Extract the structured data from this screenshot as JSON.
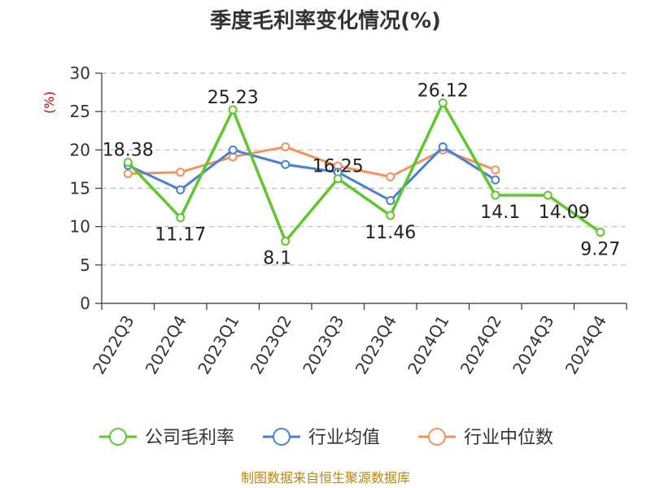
{
  "chart_data": {
    "type": "line",
    "title": "季度毛利率变化情况(%)",
    "unit_label": "(%)",
    "source": "制图数据来自恒生聚源数据库",
    "categories": [
      "2022Q3",
      "2022Q4",
      "2023Q1",
      "2023Q2",
      "2023Q3",
      "2023Q4",
      "2024Q1",
      "2024Q2",
      "2024Q3",
      "2024Q4"
    ],
    "ylim": [
      0,
      30
    ],
    "yticks": [
      0,
      5,
      10,
      15,
      20,
      25,
      30
    ],
    "grid": true,
    "legend_position": "bottom",
    "series": [
      {
        "name": "公司毛利率",
        "color": "#5ec72b",
        "values": [
          18.38,
          11.17,
          25.23,
          8.1,
          16.25,
          11.46,
          26.12,
          14.1,
          14.09,
          9.27
        ],
        "labels": [
          "18.38",
          "11.17",
          "25.23",
          "8.1",
          "16.25",
          "11.46",
          "26.12",
          "14.1",
          "14.09",
          "9.27"
        ]
      },
      {
        "name": "行业均值",
        "color": "#4a7fd8",
        "values": [
          18.0,
          14.8,
          20.0,
          18.1,
          17.1,
          13.4,
          20.4,
          16.1,
          null,
          null
        ]
      },
      {
        "name": "行业中位数",
        "color": "#f5915a",
        "values": [
          16.9,
          17.1,
          19.1,
          20.4,
          17.9,
          16.5,
          20.0,
          17.4,
          null,
          null
        ]
      }
    ]
  }
}
